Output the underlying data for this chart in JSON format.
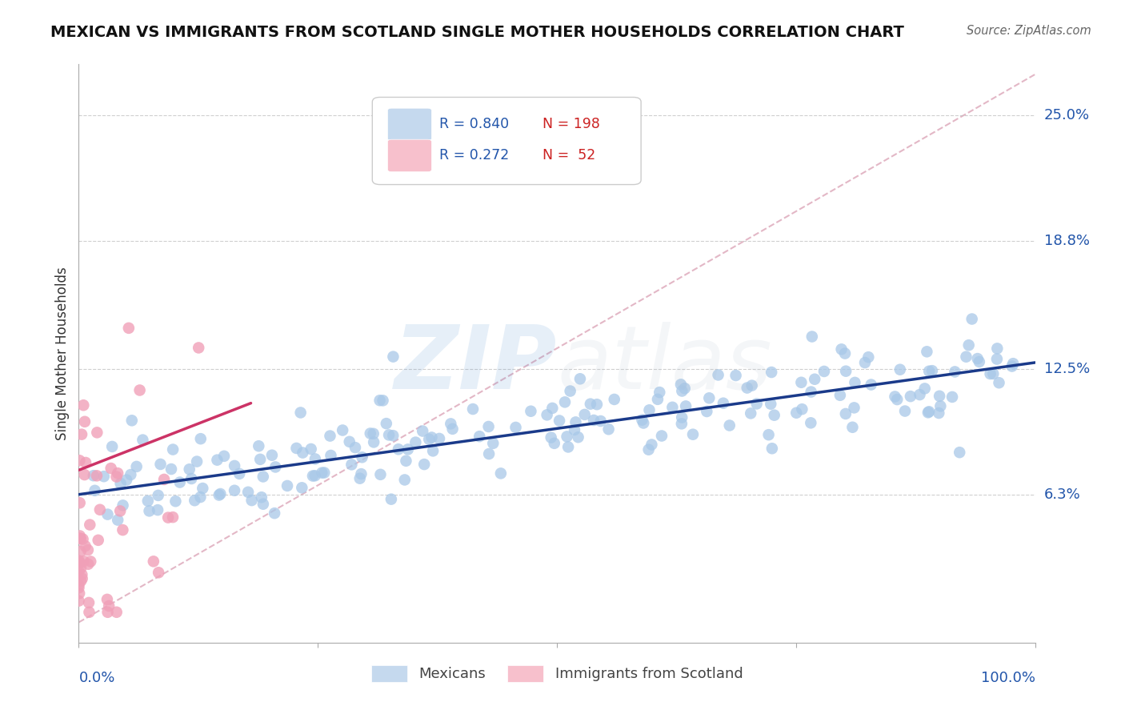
{
  "title": "MEXICAN VS IMMIGRANTS FROM SCOTLAND SINGLE MOTHER HOUSEHOLDS CORRELATION CHART",
  "source": "Source: ZipAtlas.com",
  "ylabel": "Single Mother Households",
  "ytick_labels": [
    "6.3%",
    "12.5%",
    "18.8%",
    "25.0%"
  ],
  "ytick_values": [
    0.063,
    0.125,
    0.188,
    0.25
  ],
  "xlim": [
    0.0,
    1.0
  ],
  "ylim": [
    -0.01,
    0.275
  ],
  "blue_R": 0.84,
  "blue_N": 198,
  "pink_R": 0.272,
  "pink_N": 52,
  "blue_color": "#a8c8e8",
  "pink_color": "#f0a0b8",
  "blue_line_color": "#1a3a8a",
  "pink_line_color": "#cc3366",
  "diag_line_color": "#e0b0c0",
  "legend_box_blue": "#c5d9ee",
  "legend_box_pink": "#f7c0cc",
  "legend_text_color": "#2255aa",
  "legend_N_color": "#cc2222",
  "title_color": "#111111",
  "axis_label_color": "#2255aa",
  "background": "#ffffff",
  "grid_color": "#bbbbbb",
  "seed": 42,
  "blue_line_start_y": 0.063,
  "blue_line_end_y": 0.128,
  "pink_line_start_x": 0.0,
  "pink_line_start_y": 0.075,
  "pink_line_end_x": 0.18,
  "pink_line_end_y": 0.108
}
